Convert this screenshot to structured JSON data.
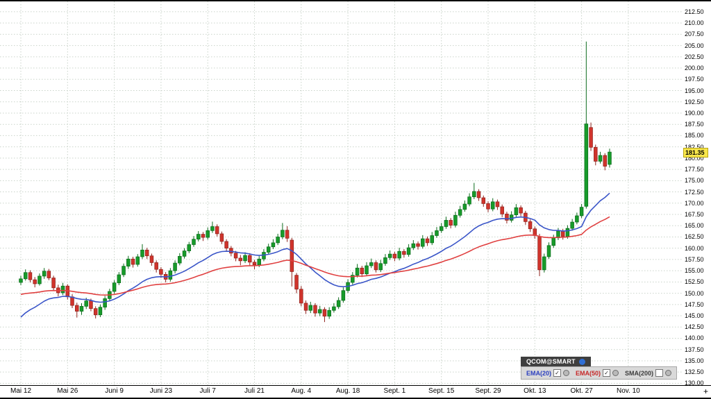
{
  "legend": {
    "title": "QCOM@SMART"
  },
  "time_axis": {
    "plus": "+"
  },
  "chart_data": {
    "type": "candlestick",
    "symbol": "QCOM@SMART",
    "last_price": 181.35,
    "last_price_label": "181.35",
    "y_axis": {
      "min": 130.0,
      "max": 212.5,
      "step": 2.5,
      "decimals": 2
    },
    "x_ticks": [
      {
        "label": "Mai 12",
        "day": 0
      },
      {
        "label": "Mai 26",
        "day": 10
      },
      {
        "label": "Juni 9",
        "day": 20
      },
      {
        "label": "Juni 23",
        "day": 30
      },
      {
        "label": "Juli 7",
        "day": 40
      },
      {
        "label": "Juli 21",
        "day": 50
      },
      {
        "label": "Aug. 4",
        "day": 60
      },
      {
        "label": "Aug. 18",
        "day": 70
      },
      {
        "label": "Sept. 1",
        "day": 80
      },
      {
        "label": "Sept. 15",
        "day": 90
      },
      {
        "label": "Sept. 29",
        "day": 100
      },
      {
        "label": "Okt. 13",
        "day": 110
      },
      {
        "label": "Okt. 27",
        "day": 120
      },
      {
        "label": "Nov. 10",
        "day": 130
      }
    ],
    "plot": {
      "x0": 30,
      "day_width": 6.73,
      "price_top": 214.8,
      "price_bottom": 129.6
    },
    "colors": {
      "up": "#179b2a",
      "up_border": "#0b6b1b",
      "down": "#d0342c",
      "down_border": "#8e221c",
      "grid": "#c9d3c9",
      "badge_bg": "#f7e64a"
    },
    "overlays": [
      {
        "name": "EMA(20)",
        "period": 20,
        "seed": 143.8,
        "color": "#3a55c8",
        "label_color": "#2b3fbf",
        "checked": true,
        "visible": true
      },
      {
        "name": "EMA(50)",
        "period": 50,
        "seed": 149.6,
        "color": "#e04040",
        "label_color": "#c62828",
        "checked": true,
        "visible": true
      },
      {
        "name": "SMA(200)",
        "period": 200,
        "seed": null,
        "color": "#6e6e6e",
        "label_color": "#3c3c3c",
        "checked": false,
        "visible": false
      }
    ],
    "candles": [
      [
        152.4,
        153.9,
        151.8,
        153.2
      ],
      [
        153.2,
        155.3,
        152.8,
        154.6
      ],
      [
        154.6,
        155.1,
        152.4,
        153.0
      ],
      [
        153.0,
        153.6,
        151.3,
        152.1
      ],
      [
        152.1,
        154.4,
        151.7,
        153.8
      ],
      [
        153.8,
        155.6,
        153.2,
        154.9
      ],
      [
        154.9,
        155.4,
        152.9,
        153.4
      ],
      [
        153.4,
        153.9,
        150.6,
        151.2
      ],
      [
        151.2,
        151.9,
        149.3,
        150.1
      ],
      [
        150.1,
        152.3,
        149.6,
        151.6
      ],
      [
        151.6,
        152.0,
        148.6,
        149.2
      ],
      [
        149.2,
        149.8,
        146.7,
        147.3
      ],
      [
        147.3,
        147.9,
        144.6,
        146.0
      ],
      [
        146.0,
        147.8,
        145.2,
        147.1
      ],
      [
        147.1,
        149.0,
        146.5,
        148.3
      ],
      [
        148.3,
        148.8,
        146.0,
        146.6
      ],
      [
        146.6,
        147.1,
        144.4,
        145.2
      ],
      [
        145.2,
        147.5,
        144.7,
        146.9
      ],
      [
        146.9,
        149.4,
        146.3,
        148.8
      ],
      [
        148.8,
        151.0,
        148.2,
        150.4
      ],
      [
        150.4,
        152.9,
        149.9,
        152.3
      ],
      [
        152.3,
        154.7,
        151.8,
        154.1
      ],
      [
        154.1,
        156.6,
        153.6,
        156.0
      ],
      [
        156.0,
        158.3,
        155.4,
        157.6
      ],
      [
        157.6,
        158.1,
        155.7,
        156.4
      ],
      [
        156.4,
        158.7,
        155.9,
        158.1
      ],
      [
        158.1,
        160.9,
        157.6,
        159.6
      ],
      [
        159.6,
        160.1,
        157.6,
        158.3
      ],
      [
        158.3,
        158.8,
        156.1,
        156.8
      ],
      [
        156.8,
        157.3,
        154.6,
        155.3
      ],
      [
        155.3,
        155.8,
        153.4,
        154.2
      ],
      [
        154.2,
        154.7,
        152.4,
        153.1
      ],
      [
        153.1,
        155.6,
        152.6,
        155.0
      ],
      [
        155.0,
        157.3,
        154.4,
        156.7
      ],
      [
        156.7,
        158.9,
        156.2,
        158.2
      ],
      [
        158.2,
        160.0,
        157.7,
        159.4
      ],
      [
        159.4,
        161.4,
        158.9,
        160.8
      ],
      [
        160.8,
        162.7,
        160.3,
        162.0
      ],
      [
        162.0,
        163.8,
        161.5,
        163.1
      ],
      [
        163.1,
        163.6,
        161.6,
        162.4
      ],
      [
        162.4,
        164.6,
        161.9,
        163.9
      ],
      [
        163.9,
        165.9,
        163.4,
        164.8
      ],
      [
        164.8,
        165.3,
        162.6,
        163.2
      ],
      [
        163.2,
        163.7,
        160.9,
        161.5
      ],
      [
        161.5,
        162.0,
        159.4,
        160.0
      ],
      [
        160.0,
        160.5,
        158.2,
        158.9
      ],
      [
        158.9,
        159.4,
        157.1,
        157.8
      ],
      [
        157.8,
        158.5,
        156.2,
        157.2
      ],
      [
        157.2,
        159.1,
        156.7,
        158.4
      ],
      [
        158.4,
        158.9,
        156.2,
        156.9
      ],
      [
        156.9,
        157.4,
        155.3,
        156.3
      ],
      [
        156.3,
        158.3,
        155.8,
        157.6
      ],
      [
        157.6,
        159.8,
        157.1,
        159.1
      ],
      [
        159.1,
        161.0,
        158.6,
        160.3
      ],
      [
        160.3,
        162.0,
        159.8,
        161.2
      ],
      [
        161.2,
        163.2,
        160.7,
        162.5
      ],
      [
        162.5,
        165.6,
        162.0,
        164.0
      ],
      [
        164.0,
        164.9,
        161.4,
        162.2
      ],
      [
        161.8,
        162.3,
        151.5,
        154.8
      ],
      [
        154.0,
        154.5,
        150.0,
        150.9
      ],
      [
        150.9,
        151.6,
        147.1,
        147.8
      ],
      [
        147.8,
        148.4,
        145.4,
        146.2
      ],
      [
        146.2,
        148.1,
        145.6,
        147.3
      ],
      [
        147.3,
        147.8,
        144.8,
        145.6
      ],
      [
        145.6,
        147.2,
        144.9,
        146.4
      ],
      [
        146.4,
        146.9,
        143.6,
        144.9
      ],
      [
        144.9,
        146.9,
        144.3,
        146.2
      ],
      [
        146.2,
        147.8,
        145.7,
        147.0
      ],
      [
        147.0,
        149.1,
        146.5,
        148.4
      ],
      [
        148.4,
        151.3,
        147.9,
        150.6
      ],
      [
        150.6,
        153.1,
        150.1,
        152.4
      ],
      [
        152.4,
        154.7,
        151.9,
        154.0
      ],
      [
        154.0,
        156.5,
        153.5,
        155.6
      ],
      [
        155.6,
        156.1,
        153.6,
        154.3
      ],
      [
        154.3,
        156.9,
        153.8,
        156.1
      ],
      [
        156.1,
        157.7,
        155.6,
        156.8
      ],
      [
        156.8,
        157.3,
        154.6,
        155.2
      ],
      [
        155.2,
        157.4,
        154.7,
        156.6
      ],
      [
        156.6,
        158.7,
        156.1,
        157.9
      ],
      [
        157.9,
        159.5,
        157.4,
        158.7
      ],
      [
        158.7,
        159.2,
        157.1,
        157.8
      ],
      [
        157.8,
        160.1,
        157.3,
        159.3
      ],
      [
        159.3,
        159.8,
        157.9,
        158.6
      ],
      [
        158.6,
        160.9,
        158.1,
        160.1
      ],
      [
        160.1,
        161.8,
        159.6,
        161.0
      ],
      [
        161.0,
        161.5,
        159.7,
        160.4
      ],
      [
        160.4,
        162.9,
        159.9,
        162.1
      ],
      [
        162.1,
        162.6,
        160.5,
        161.2
      ],
      [
        161.2,
        163.6,
        160.7,
        162.8
      ],
      [
        162.8,
        164.7,
        162.3,
        163.9
      ],
      [
        163.9,
        165.6,
        163.4,
        164.8
      ],
      [
        164.8,
        167.0,
        164.3,
        166.2
      ],
      [
        166.2,
        166.7,
        164.4,
        165.1
      ],
      [
        165.1,
        168.1,
        164.6,
        167.3
      ],
      [
        167.3,
        169.4,
        166.8,
        168.6
      ],
      [
        168.6,
        170.6,
        168.1,
        169.8
      ],
      [
        169.8,
        172.2,
        169.3,
        171.4
      ],
      [
        171.4,
        174.5,
        170.9,
        172.6
      ],
      [
        172.6,
        173.1,
        170.5,
        171.2
      ],
      [
        171.2,
        171.7,
        169.2,
        169.9
      ],
      [
        169.9,
        170.4,
        168.0,
        168.7
      ],
      [
        168.7,
        171.1,
        168.2,
        170.3
      ],
      [
        170.3,
        170.8,
        168.5,
        169.2
      ],
      [
        169.2,
        169.7,
        166.9,
        167.6
      ],
      [
        167.6,
        168.1,
        165.5,
        166.2
      ],
      [
        166.2,
        168.2,
        165.7,
        167.4
      ],
      [
        167.4,
        169.8,
        166.9,
        169.0
      ],
      [
        169.0,
        169.5,
        167.1,
        167.8
      ],
      [
        167.8,
        168.3,
        165.2,
        165.9
      ],
      [
        165.9,
        166.4,
        163.6,
        164.3
      ],
      [
        164.3,
        164.8,
        162.1,
        162.8
      ],
      [
        162.5,
        163.2,
        153.8,
        155.2
      ],
      [
        155.2,
        158.8,
        154.6,
        158.1
      ],
      [
        158.1,
        161.3,
        157.6,
        160.6
      ],
      [
        160.6,
        163.0,
        160.1,
        162.3
      ],
      [
        162.3,
        164.5,
        161.8,
        163.8
      ],
      [
        163.8,
        164.3,
        161.9,
        162.6
      ],
      [
        162.6,
        165.1,
        162.1,
        164.4
      ],
      [
        164.4,
        166.5,
        163.9,
        165.8
      ],
      [
        165.8,
        167.9,
        165.3,
        167.2
      ],
      [
        167.2,
        169.8,
        166.7,
        169.1
      ],
      [
        169.3,
        205.88,
        168.8,
        187.6
      ],
      [
        186.8,
        187.9,
        181.6,
        182.4
      ],
      [
        182.4,
        183.0,
        178.4,
        179.3
      ],
      [
        179.3,
        181.4,
        178.8,
        180.6
      ],
      [
        180.6,
        181.1,
        177.3,
        178.2
      ],
      [
        178.6,
        182.1,
        177.9,
        181.35
      ]
    ]
  }
}
